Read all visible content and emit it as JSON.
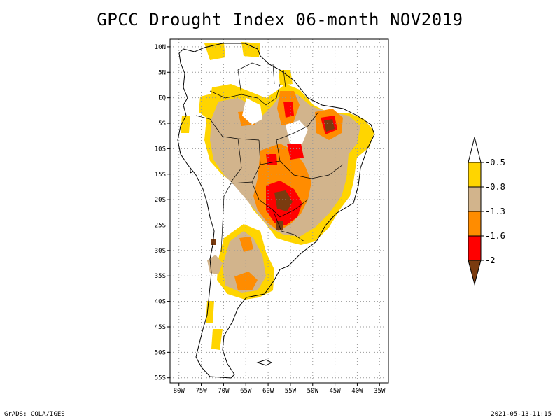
{
  "title": "GPCC Drought Index 06-month NOV2019",
  "map": {
    "lat_labels": [
      "10N",
      "5N",
      "EQ",
      "5S",
      "10S",
      "15S",
      "20S",
      "25S",
      "30S",
      "35S",
      "40S",
      "45S",
      "50S",
      "55S"
    ],
    "lon_labels": [
      "80W",
      "75W",
      "70W",
      "65W",
      "60W",
      "55W",
      "50W",
      "45W",
      "40W",
      "35W"
    ],
    "lat_range": [
      11.5,
      -56
    ],
    "lon_range": [
      -82,
      -33
    ]
  },
  "colorbar": {
    "labels": [
      "-0.5",
      "-0.8",
      "-1.3",
      "-1.6",
      "-2"
    ],
    "colors": {
      "top": "#ffffff",
      "l1": "#ffd500",
      "l2": "#d2b48c",
      "l3": "#ff8c00",
      "l4": "#ff0000",
      "bottom": "#7a3b0f"
    }
  },
  "footer": {
    "left": "GrADS: COLA/IGES",
    "right": "2021-05-13-11:15"
  }
}
